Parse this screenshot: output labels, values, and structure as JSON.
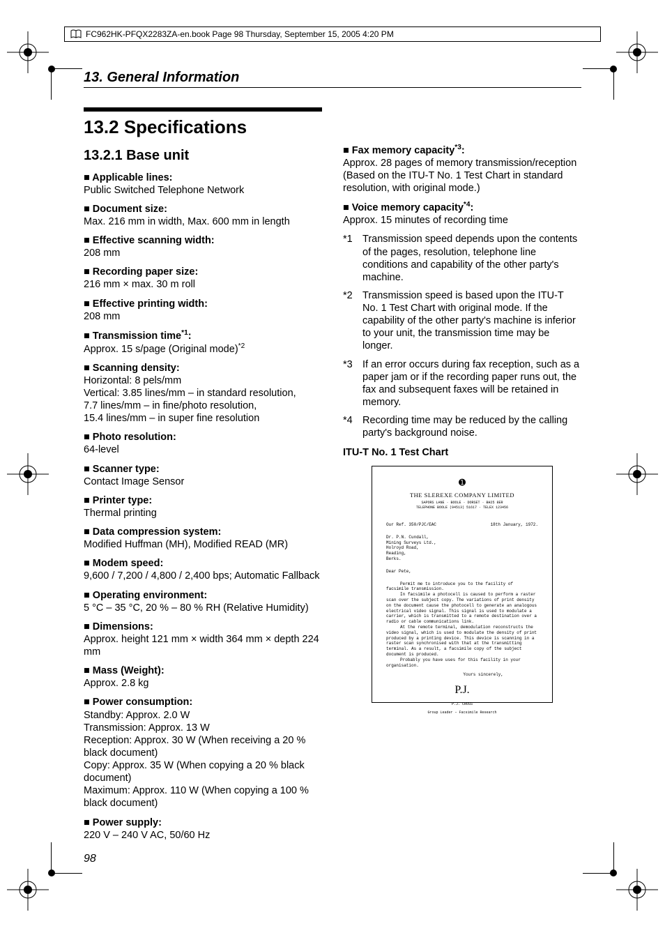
{
  "frame_header": "FC962HK-PFQX2283ZA-en.book  Page 98  Thursday, September 15, 2005  4:20 PM",
  "section_header": "13. General Information",
  "title": "13.2 Specifications",
  "subtitle": "13.2.1 Base unit",
  "page_number": "98",
  "left_specs": [
    {
      "label": "Applicable lines:",
      "value": "Public Switched Telephone Network"
    },
    {
      "label": "Document size:",
      "value": "Max. 216 mm in width, Max. 600 mm in length"
    },
    {
      "label": "Effective scanning width:",
      "value": "208 mm"
    },
    {
      "label": "Recording paper size:",
      "value": "216 mm × max. 30 m roll"
    },
    {
      "label": "Effective printing width:",
      "value": "208 mm"
    }
  ],
  "transmission_label": "Transmission time",
  "transmission_sup": "*1",
  "transmission_colon": ":",
  "transmission_value_a": "Approx. 15 s/page (Original mode)",
  "transmission_value_sup": "*2",
  "scanning_density": {
    "label": "Scanning density:",
    "l1": "Horizontal: 8 pels/mm",
    "l2": "Vertical: 3.85 lines/mm – in standard resolution,",
    "l3": "7.7 lines/mm – in fine/photo resolution,",
    "l4": "15.4 lines/mm – in super fine resolution"
  },
  "left_specs2": [
    {
      "label": "Photo resolution:",
      "value": "64-level"
    },
    {
      "label": "Scanner type:",
      "value": "Contact Image Sensor"
    },
    {
      "label": "Printer type:",
      "value": "Thermal printing"
    },
    {
      "label": "Data compression system:",
      "value": "Modified Huffman (MH), Modified READ (MR)"
    },
    {
      "label": "Modem speed:",
      "value": "9,600 / 7,200 / 4,800 / 2,400 bps; Automatic Fallback"
    },
    {
      "label": "Operating environment:",
      "value": "5 °C – 35 °C, 20 % – 80 % RH (Relative Humidity)"
    },
    {
      "label": "Dimensions:",
      "value": "Approx. height 121 mm × width 364 mm × depth 224 mm"
    },
    {
      "label": "Mass (Weight):",
      "value": "Approx. 2.8 kg"
    }
  ],
  "power_consumption": {
    "label": "Power consumption:",
    "l1": "Standby: Approx. 2.0 W",
    "l2": "Transmission: Approx. 13 W",
    "l3": "Reception: Approx. 30 W (When receiving a 20 % black document)",
    "l4": "Copy: Approx. 35 W (When copying a 20 % black document)",
    "l5": "Maximum: Approx. 110 W (When copying a 100 % black document)"
  },
  "power_supply": {
    "label": "Power supply:",
    "value": "220 V – 240 V AC, 50/60 Hz"
  },
  "fax_mem": {
    "label": "Fax memory capacity",
    "sup": "*3",
    "colon": ":",
    "l1": "Approx. 28 pages of memory transmission/reception",
    "l2": "(Based on the ITU-T No. 1 Test Chart in standard resolution, with original mode.)"
  },
  "voice_mem": {
    "label": "Voice memory capacity",
    "sup": "*4",
    "colon": ":",
    "value": "Approx. 15 minutes of recording time"
  },
  "notes": [
    {
      "k": "*1",
      "t": "Transmission speed depends upon the contents of the pages, resolution, telephone line conditions and capability of the other party's machine."
    },
    {
      "k": "*2",
      "t": "Transmission speed is based upon the ITU-T No. 1 Test Chart with original mode. If the capability of the other party's machine is inferior to your unit, the transmission time may be longer."
    },
    {
      "k": "*3",
      "t": "If an error occurs during fax reception, such as a paper jam or if the recording paper runs out, the fax and subsequent faxes will be retained in memory."
    },
    {
      "k": "*4",
      "t": "Recording time may be reduced by the calling party's background noise."
    }
  ],
  "itu_heading": "ITU-T No. 1 Test Chart",
  "itu": {
    "dot": "➊",
    "company": "THE SLEREXE COMPANY LIMITED",
    "addr1": "SAPORS LANE · BOOLE · DORSET · BH25 8ER",
    "addr2": "TELEPHONE BOOLE (94513) 51617 · TELEX 123456",
    "ref": "Our Ref. 350/PJC/EAC",
    "date": "18th January, 1972.",
    "to1": "Dr. P.N. Cundall,",
    "to2": "Mining Surveys Ltd.,",
    "to3": "Holroyd Road,",
    "to4": "Reading,",
    "to5": "Berks.",
    "dear": "Dear Pete,",
    "p1": "Permit me to introduce you to the facility of facsimile transmission.",
    "p2": "In facsimile a photocell is caused to perform a raster scan over the subject copy. The variations of print density on the document cause the photocell to generate an analogous electrical video signal. This signal is used to modulate a carrier, which is transmitted to a remote destination over a radio or cable communications link.",
    "p3": "At the remote terminal, demodulation reconstructs the video signal, which is used to modulate the density of print produced by a printing device. This device is scanning in a raster scan synchronised with that at the transmitting terminal. As a result, a facsimile copy of the subject document is produced.",
    "p4": "Probably you have uses for this facility in your organisation.",
    "sincerely": "Yours sincerely,",
    "sig": "P.J.",
    "name1": "P.J. CROSS",
    "name2": "Group Leader – Facsimile Research"
  }
}
